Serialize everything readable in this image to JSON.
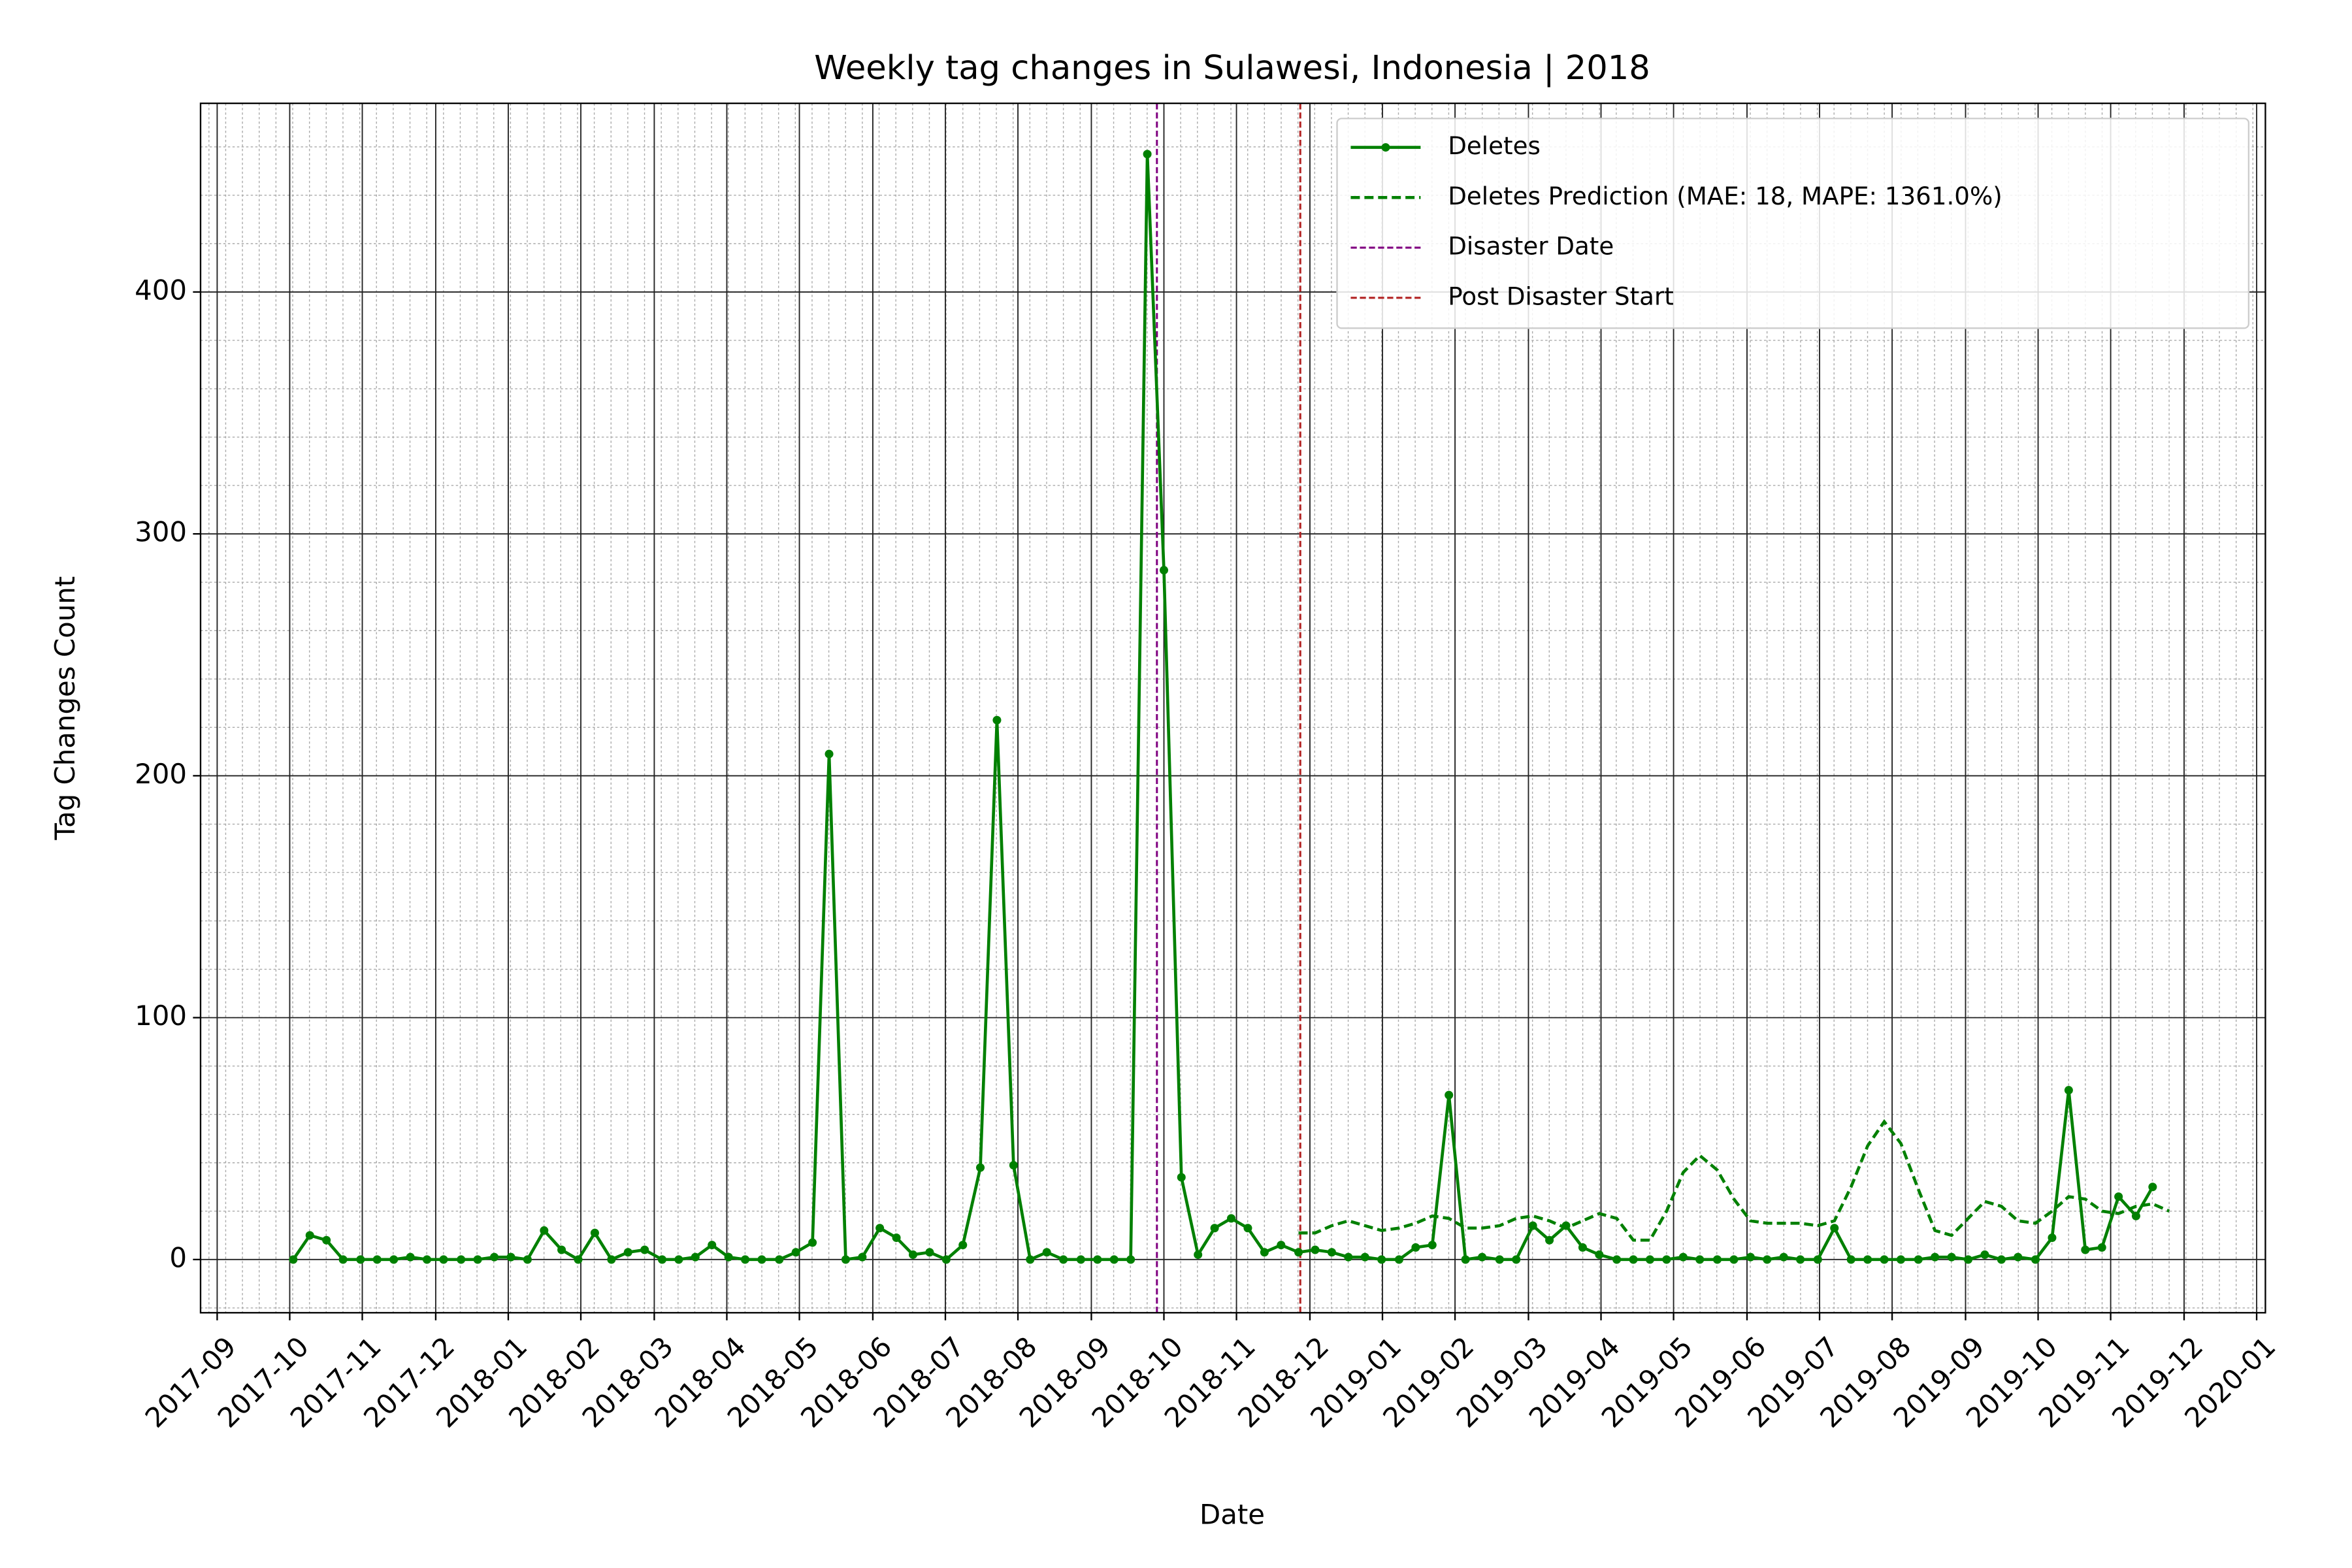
{
  "chart_data": {
    "type": "line",
    "title": "Weekly tag changes in Sulawesi, Indonesia | 2018",
    "x_label": "Date",
    "y_label": "Tag Changes Count",
    "x": [
      2017.754,
      2017.773,
      2017.792,
      2017.811,
      2017.831,
      2017.85,
      2017.869,
      2017.888,
      2017.907,
      2017.926,
      2017.946,
      2017.965,
      2017.984,
      2018.003,
      2018.022,
      2018.041,
      2018.061,
      2018.08,
      2018.099,
      2018.118,
      2018.137,
      2018.156,
      2018.176,
      2018.195,
      2018.214,
      2018.233,
      2018.252,
      2018.271,
      2018.29,
      2018.31,
      2018.329,
      2018.348,
      2018.367,
      2018.386,
      2018.405,
      2018.425,
      2018.444,
      2018.463,
      2018.482,
      2018.501,
      2018.52,
      2018.54,
      2018.559,
      2018.578,
      2018.597,
      2018.616,
      2018.635,
      2018.655,
      2018.674,
      2018.693,
      2018.712,
      2018.731,
      2018.75,
      2018.77,
      2018.789,
      2018.808,
      2018.827,
      2018.846,
      2018.865,
      2018.884,
      2018.904,
      2018.923,
      2018.942,
      2018.961,
      2018.98,
      2018.999,
      2019.019,
      2019.038,
      2019.057,
      2019.076,
      2019.095,
      2019.114,
      2019.134,
      2019.153,
      2019.172,
      2019.191,
      2019.21,
      2019.229,
      2019.248,
      2019.268,
      2019.287,
      2019.306,
      2019.325,
      2019.344,
      2019.363,
      2019.383,
      2019.402,
      2019.421,
      2019.44,
      2019.459,
      2019.478,
      2019.498,
      2019.517,
      2019.536,
      2019.555,
      2019.574,
      2019.593,
      2019.613,
      2019.632,
      2019.651,
      2019.67,
      2019.689,
      2019.708,
      2019.727,
      2019.747,
      2019.766,
      2019.785,
      2019.804,
      2019.823,
      2019.842,
      2019.862,
      2019.881,
      2019.9
    ],
    "series": [
      {
        "name": "Deletes",
        "color": "#008000",
        "style": "solid",
        "markers": true,
        "values": [
          0,
          10,
          8,
          0,
          0,
          0,
          0,
          1,
          0,
          0,
          0,
          0,
          1,
          1,
          0,
          12,
          4,
          0,
          11,
          0,
          3,
          4,
          0,
          0,
          1,
          6,
          1,
          0,
          0,
          0,
          3,
          7,
          209,
          0,
          1,
          13,
          9,
          2,
          3,
          0,
          6,
          38,
          223,
          39,
          0,
          3,
          0,
          0,
          0,
          0,
          0,
          457,
          285,
          34,
          2,
          13,
          17,
          13,
          3,
          6,
          3,
          4,
          3,
          1,
          1,
          0,
          0,
          5,
          6,
          68,
          0,
          1,
          0,
          0,
          14,
          8,
          14,
          5,
          2,
          0,
          0,
          0,
          0,
          1,
          0,
          0,
          0,
          1,
          0,
          1,
          0,
          0,
          13,
          0,
          0,
          0,
          0,
          0,
          1,
          1,
          0,
          2,
          0,
          1,
          0,
          9,
          70,
          4,
          5,
          26,
          18,
          30,
          null
        ]
      },
      {
        "name": "Deletes Prediction (MAE: 18, MAPE: 1361.0%)",
        "color": "#008000",
        "style": "dashed",
        "markers": false,
        "values": [
          null,
          null,
          null,
          null,
          null,
          null,
          null,
          null,
          null,
          null,
          null,
          null,
          null,
          null,
          null,
          null,
          null,
          null,
          null,
          null,
          null,
          null,
          null,
          null,
          null,
          null,
          null,
          null,
          null,
          null,
          null,
          null,
          null,
          null,
          null,
          null,
          null,
          null,
          null,
          null,
          null,
          null,
          null,
          null,
          null,
          null,
          null,
          null,
          null,
          null,
          null,
          null,
          null,
          null,
          null,
          null,
          null,
          null,
          null,
          null,
          11,
          11,
          14,
          16,
          14,
          12,
          13,
          15,
          18,
          17,
          13,
          13,
          14,
          17,
          18,
          16,
          13,
          16,
          19,
          17,
          8,
          8,
          20,
          36,
          43,
          37,
          25,
          16,
          15,
          15,
          15,
          14,
          16,
          30,
          47,
          57,
          48,
          29,
          12,
          10,
          17,
          24,
          22,
          16,
          15,
          20,
          26,
          25,
          20,
          19,
          22,
          23,
          20
        ]
      }
    ],
    "vlines": [
      {
        "name": "Disaster Date",
        "x": 2018.742,
        "color": "#800080"
      },
      {
        "name": "Post Disaster Start",
        "x": 2018.906,
        "color": "#b22222"
      }
    ],
    "xlim": [
      2017.648,
      2020.01
    ],
    "xticks": [
      {
        "value": 2017.667,
        "label": "2017-09"
      },
      {
        "value": 2017.75,
        "label": "2017-10"
      },
      {
        "value": 2017.833,
        "label": "2017-11"
      },
      {
        "value": 2017.917,
        "label": "2017-12"
      },
      {
        "value": 2018.0,
        "label": "2018-01"
      },
      {
        "value": 2018.083,
        "label": "2018-02"
      },
      {
        "value": 2018.167,
        "label": "2018-03"
      },
      {
        "value": 2018.25,
        "label": "2018-04"
      },
      {
        "value": 2018.333,
        "label": "2018-05"
      },
      {
        "value": 2018.417,
        "label": "2018-06"
      },
      {
        "value": 2018.5,
        "label": "2018-07"
      },
      {
        "value": 2018.583,
        "label": "2018-08"
      },
      {
        "value": 2018.667,
        "label": "2018-09"
      },
      {
        "value": 2018.75,
        "label": "2018-10"
      },
      {
        "value": 2018.833,
        "label": "2018-11"
      },
      {
        "value": 2018.917,
        "label": "2018-12"
      },
      {
        "value": 2019.0,
        "label": "2019-01"
      },
      {
        "value": 2019.083,
        "label": "2019-02"
      },
      {
        "value": 2019.167,
        "label": "2019-03"
      },
      {
        "value": 2019.25,
        "label": "2019-04"
      },
      {
        "value": 2019.333,
        "label": "2019-05"
      },
      {
        "value": 2019.417,
        "label": "2019-06"
      },
      {
        "value": 2019.5,
        "label": "2019-07"
      },
      {
        "value": 2019.583,
        "label": "2019-08"
      },
      {
        "value": 2019.667,
        "label": "2019-09"
      },
      {
        "value": 2019.75,
        "label": "2019-10"
      },
      {
        "value": 2019.833,
        "label": "2019-11"
      },
      {
        "value": 2019.917,
        "label": "2019-12"
      },
      {
        "value": 2020.0,
        "label": "2020-01"
      }
    ],
    "ylim": [
      -22,
      478
    ],
    "yticks": [
      0,
      100,
      200,
      300,
      400
    ],
    "grid": true,
    "legend": "upper right"
  }
}
